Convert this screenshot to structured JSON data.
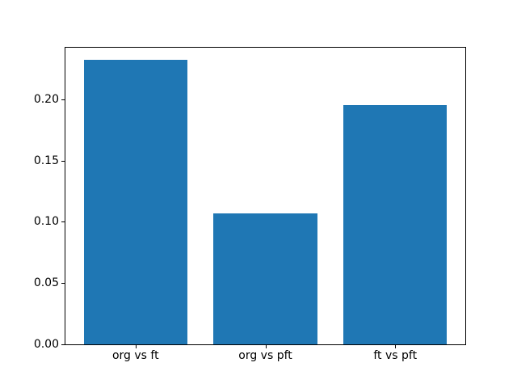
{
  "chart_data": {
    "type": "bar",
    "categories": [
      "org vs ft",
      "org vs pft",
      "ft vs pft"
    ],
    "values": [
      0.232,
      0.107,
      0.195
    ],
    "title": "",
    "xlabel": "",
    "ylabel": "",
    "ylim": [
      0,
      0.242
    ],
    "yticks": [
      0.0,
      0.05,
      0.1,
      0.15,
      0.2
    ],
    "ytick_labels": [
      "0.00",
      "0.05",
      "0.10",
      "0.15",
      "0.20"
    ],
    "bar_color": "#1f77b4",
    "grid": false,
    "legend": "none",
    "background_color": "#ffffff",
    "spine_color": "#000000"
  }
}
